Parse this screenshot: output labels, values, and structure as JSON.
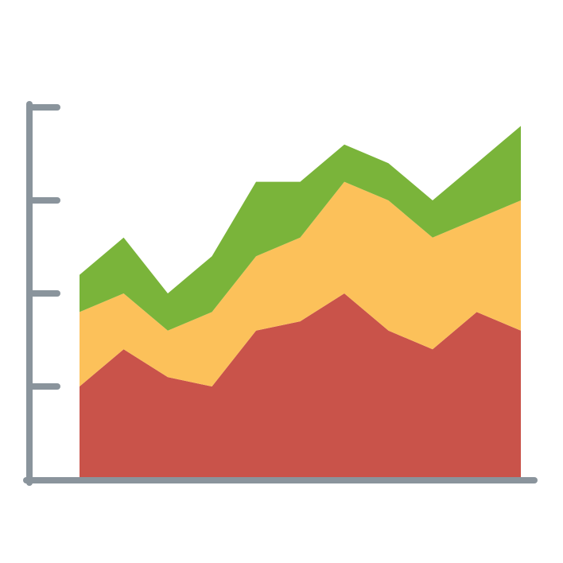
{
  "chart_data": {
    "type": "stacked-area",
    "categories": [
      null,
      null,
      null,
      null,
      null,
      null,
      null,
      null,
      null,
      null,
      null
    ],
    "series": [
      {
        "color": "#c9534a",
        "values": [
          1.0,
          1.4,
          1.1,
          1.0,
          1.6,
          1.7,
          2.0,
          1.6,
          1.4,
          1.8,
          1.6
        ]
      },
      {
        "color": "#fcc15a",
        "values": [
          0.8,
          0.6,
          0.5,
          0.8,
          0.8,
          0.9,
          1.2,
          1.4,
          1.2,
          1.0,
          1.4
        ]
      },
      {
        "color": "#7ab43a",
        "values": [
          0.4,
          0.6,
          0.4,
          0.6,
          0.8,
          0.6,
          0.4,
          0.4,
          0.4,
          0.6,
          0.8
        ]
      }
    ],
    "ylim": [
      0,
      4
    ],
    "yticks": [
      1,
      2,
      3,
      4
    ],
    "axis_color": "#8a949c",
    "grid": false
  }
}
